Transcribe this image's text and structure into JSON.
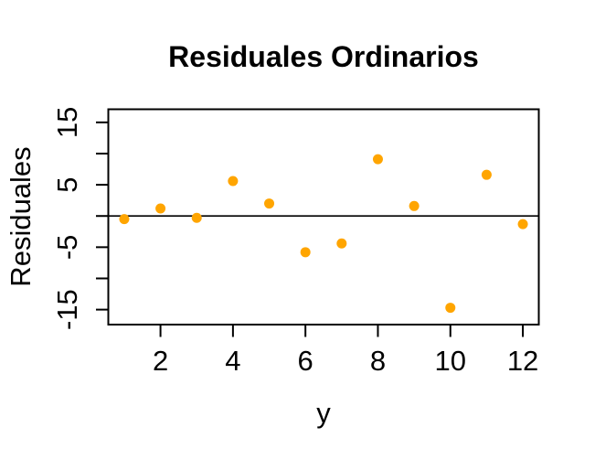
{
  "chart_data": {
    "type": "scatter",
    "title": "Residuales Ordinarios",
    "xlabel": "y",
    "ylabel": "Residuales",
    "x": [
      1,
      2,
      3,
      4,
      5,
      6,
      7,
      8,
      9,
      10,
      11,
      12
    ],
    "y": [
      -0.5,
      1.2,
      -0.3,
      5.6,
      2.0,
      -5.8,
      -4.4,
      9.1,
      1.6,
      -14.7,
      6.6,
      -1.3
    ],
    "point_color": "#FFA500",
    "point_shape": "filled-circle",
    "hline_y": 0,
    "xlim": [
      0.56,
      12.44
    ],
    "ylim": [
      -17.4,
      17.1
    ],
    "x_ticks": [
      2,
      4,
      6,
      8,
      10,
      12
    ],
    "x_tick_labels": [
      "2",
      "4",
      "6",
      "8",
      "10",
      "12"
    ],
    "y_ticks": [
      -15,
      -10,
      -5,
      0,
      5,
      10,
      15
    ],
    "y_tick_labels": [
      "-15",
      "",
      "-5",
      "",
      "5",
      "",
      "15"
    ],
    "grid": false,
    "legend": null,
    "axis_color": "#000000",
    "background_color": "#FFFFFF"
  }
}
